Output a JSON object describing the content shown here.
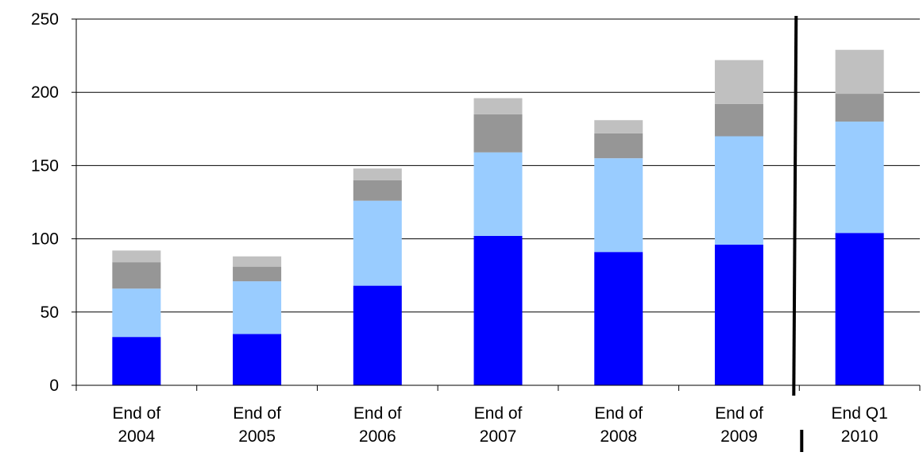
{
  "chart_data": {
    "type": "bar",
    "stacked": true,
    "title": "",
    "xlabel": "",
    "ylabel": "",
    "ylim": [
      0,
      250
    ],
    "yticks": [
      0,
      50,
      100,
      150,
      200,
      250
    ],
    "grid": true,
    "legend": "none",
    "categories": [
      [
        "End of",
        "2004"
      ],
      [
        "End of",
        "2005"
      ],
      [
        "End of",
        "2006"
      ],
      [
        "End of",
        "2007"
      ],
      [
        "End of",
        "2008"
      ],
      [
        "End of",
        "2009"
      ],
      [
        "End Q1",
        "2010"
      ]
    ],
    "divider_after_category_index": 5,
    "series": [
      {
        "color": "#0000ff",
        "values": [
          33,
          35,
          68,
          102,
          91,
          96,
          104
        ]
      },
      {
        "color": "#99ccff",
        "values": [
          33,
          36,
          58,
          57,
          64,
          74,
          76
        ]
      },
      {
        "color": "#969696",
        "values": [
          18,
          10,
          14,
          26,
          17,
          22,
          19
        ]
      },
      {
        "color": "#c0c0c0",
        "values": [
          8,
          7,
          8,
          11,
          9,
          30,
          30
        ]
      }
    ]
  }
}
